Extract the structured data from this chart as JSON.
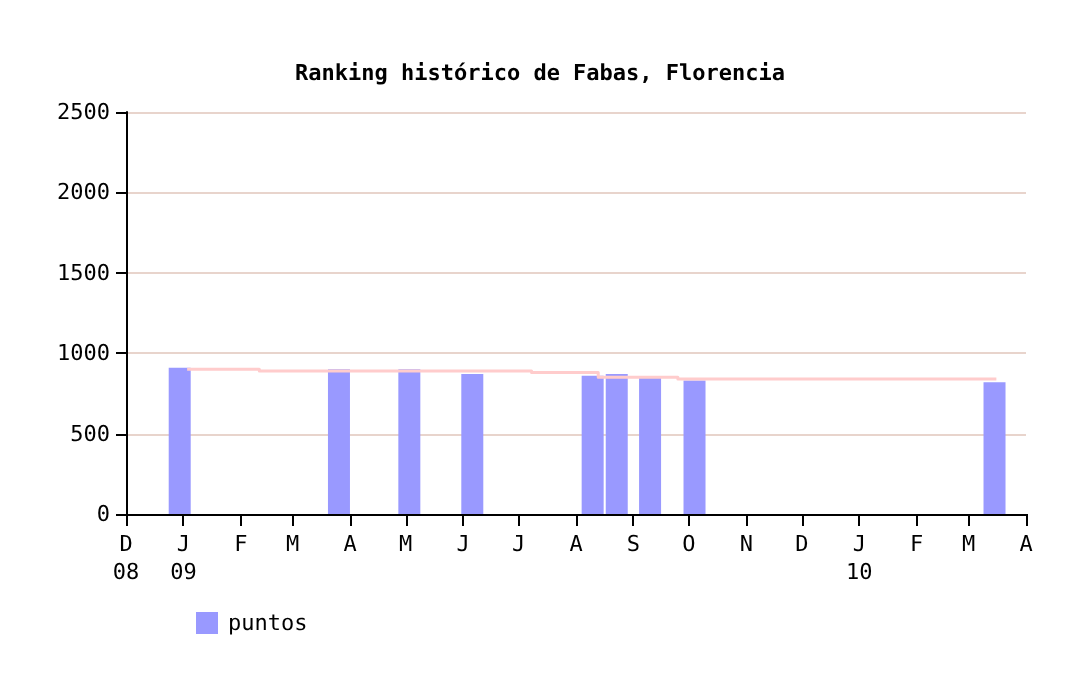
{
  "chart_data": {
    "type": "bar",
    "title": "Ranking histórico de Fabas, Florencia",
    "xlim": [
      "2008-12-01",
      "2010-04-01"
    ],
    "xticks": [
      {
        "value": "2008-12-01",
        "label": "D\n08"
      },
      {
        "value": "2009-01-01",
        "label": "J\n09"
      },
      {
        "value": "2009-02-01",
        "label": "F"
      },
      {
        "value": "2009-03-01",
        "label": "M"
      },
      {
        "value": "2009-04-01",
        "label": "A"
      },
      {
        "value": "2009-05-01",
        "label": "M"
      },
      {
        "value": "2009-06-01",
        "label": "J"
      },
      {
        "value": "2009-07-01",
        "label": "J"
      },
      {
        "value": "2009-08-01",
        "label": "A"
      },
      {
        "value": "2009-09-01",
        "label": "S"
      },
      {
        "value": "2009-10-01",
        "label": "O"
      },
      {
        "value": "2009-11-01",
        "label": "N"
      },
      {
        "value": "2009-12-01",
        "label": "D"
      },
      {
        "value": "2010-01-01",
        "label": "J\n10"
      },
      {
        "value": "2010-02-01",
        "label": "F"
      },
      {
        "value": "2010-03-01",
        "label": "M"
      },
      {
        "value": "2010-04-01",
        "label": "A"
      }
    ],
    "ylim": [
      0,
      2500
    ],
    "yticks": [
      0,
      500,
      1000,
      1500,
      2000,
      2500
    ],
    "grid": "y",
    "legend": "bottom left",
    "series": [
      {
        "name": "puntos",
        "color": "#9999ff",
        "x": [
          "2008-12-30",
          "2009-03-26",
          "2009-05-03",
          "2009-06-06",
          "2009-08-10",
          "2009-08-23",
          "2009-09-10",
          "2009-10-04",
          "2010-03-15"
        ],
        "values": [
          910,
          900,
          900,
          870,
          860,
          870,
          850,
          830,
          820
        ]
      },
      {
        "type": "step",
        "color": "#ffcccc",
        "x": [
          "2009-01-03",
          "2009-02-11",
          "2009-07-08",
          "2009-08-13",
          "2009-09-25",
          "2010-03-16"
        ],
        "values": [
          900,
          890,
          880,
          850,
          840,
          840
        ]
      }
    ]
  }
}
